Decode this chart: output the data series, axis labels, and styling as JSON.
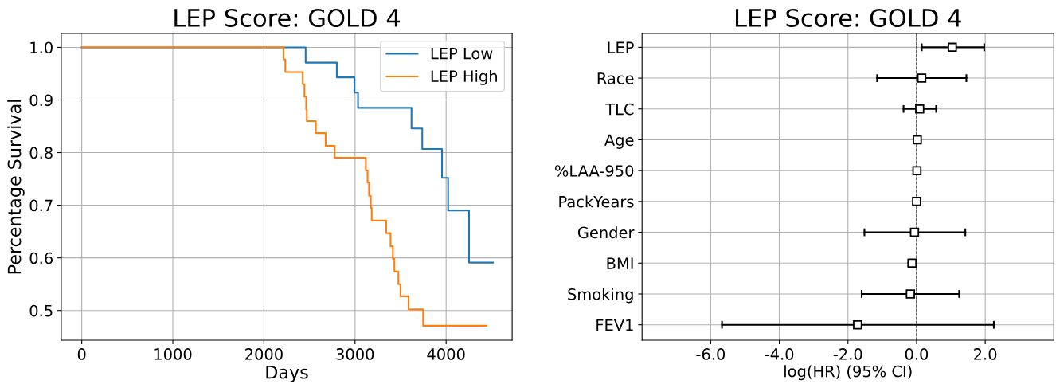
{
  "chart_data": [
    {
      "type": "step",
      "title": "LEP Score: GOLD 4",
      "xlabel": "Days",
      "ylabel": "Percentage Survival",
      "series": [
        {
          "name": "LEP Low",
          "color": "#1f77b4",
          "x": [
            0,
            2458,
            2800,
            2994,
            3033,
            3620,
            3738,
            3955,
            4022,
            4252,
            4514
          ],
          "values": [
            1.0,
            0.971,
            0.943,
            0.914,
            0.885,
            0.846,
            0.807,
            0.752,
            0.69,
            0.591,
            0.591
          ]
        },
        {
          "name": "LEP High",
          "color": "#ff7f0e",
          "x": [
            0,
            2215,
            2235,
            2426,
            2445,
            2464,
            2471,
            2570,
            2678,
            2777,
            3119,
            3138,
            3154,
            3173,
            3183,
            3342,
            3390,
            3416,
            3432,
            3476,
            3499,
            3588,
            3748,
            4444
          ],
          "values": [
            1.0,
            0.977,
            0.953,
            0.93,
            0.906,
            0.882,
            0.86,
            0.837,
            0.813,
            0.79,
            0.766,
            0.743,
            0.718,
            0.695,
            0.671,
            0.647,
            0.622,
            0.598,
            0.574,
            0.55,
            0.527,
            0.502,
            0.471,
            0.471
          ]
        }
      ],
      "xlim": [
        -225,
        4725
      ],
      "xticks": [
        0,
        1000,
        2000,
        3000,
        4000
      ],
      "ylim": [
        0.4435,
        1.0265
      ],
      "yticks": [
        0.5,
        0.6,
        0.7,
        0.8,
        0.9,
        {
          "value": 1.0,
          "label": "1.0"
        }
      ],
      "grid": true,
      "legend": "top right"
    },
    {
      "type": "scatter",
      "orientation": "horizontal",
      "title": "LEP Score: GOLD 4",
      "xlabel": "log(HR) (95% CI)",
      "categories": [
        "LEP",
        "Race",
        "TLC",
        "Age",
        "%LAA-950",
        "PackYears",
        "Gender",
        "BMI",
        "Smoking",
        "FEV1"
      ],
      "values": [
        1.04,
        0.15,
        0.09,
        0.02,
        0.01,
        0.0,
        -0.06,
        -0.13,
        -0.18,
        -1.72
      ],
      "errors": [
        [
          0.15,
          1.97
        ],
        [
          -1.15,
          1.45
        ],
        [
          -0.38,
          0.57
        ],
        [
          -0.01,
          0.06
        ],
        null,
        null,
        [
          -1.52,
          1.42
        ],
        [
          -0.24,
          -0.04
        ],
        [
          -1.6,
          1.24
        ],
        [
          -5.67,
          2.25
        ]
      ],
      "color": "#000000",
      "marker": "square",
      "xlim": [
        -8,
        4
      ],
      "xticks": [
        {
          "value": -6,
          "label": "-6.0"
        },
        {
          "value": -4,
          "label": "-4.0"
        },
        {
          "value": -2,
          "label": "-2.0"
        },
        {
          "value": 0,
          "label": "0.0"
        },
        {
          "value": 2,
          "label": "2.0"
        }
      ],
      "ref_lines": [
        {
          "axis": "x",
          "value": 0,
          "color": "#000000",
          "line_style": "dashed"
        }
      ],
      "grid": true
    }
  ]
}
